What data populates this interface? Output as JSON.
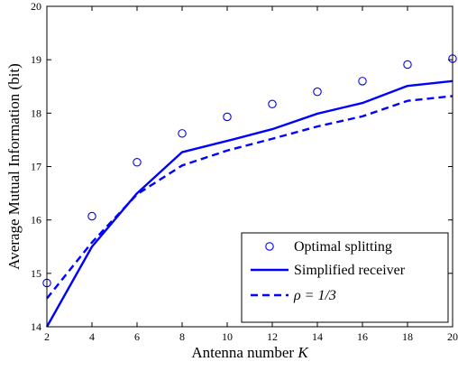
{
  "chart_data": {
    "type": "line",
    "xlabel": "Antenna number",
    "xlabel_var": "K",
    "ylabel": "Average Mutual Information (bit)",
    "xlim": [
      2,
      20
    ],
    "ylim": [
      14,
      20
    ],
    "x_ticks": [
      "2",
      "4",
      "6",
      "8",
      "10",
      "12",
      "14",
      "16",
      "18",
      "20"
    ],
    "y_ticks": [
      "14",
      "15",
      "16",
      "17",
      "18",
      "19",
      "20"
    ],
    "grid": false,
    "legend_position": "bottom-right",
    "x": [
      2,
      4,
      6,
      8,
      10,
      12,
      14,
      16,
      18,
      20
    ],
    "series": [
      {
        "name": "Optimal splitting",
        "style": "circle-markers",
        "color": "#0000ff",
        "values": [
          14.82,
          16.07,
          17.08,
          17.62,
          17.93,
          18.17,
          18.4,
          18.6,
          18.91,
          19.02
        ]
      },
      {
        "name": "Simplified receiver",
        "style": "solid",
        "color": "#0000ff",
        "values": [
          14.0,
          15.5,
          16.5,
          17.27,
          17.48,
          17.7,
          17.99,
          18.19,
          18.51,
          18.6
        ]
      },
      {
        "name": "ρ = 1/3",
        "style": "dashed",
        "color": "#0000ff",
        "values": [
          14.53,
          15.58,
          16.48,
          17.02,
          17.3,
          17.52,
          17.75,
          17.94,
          18.23,
          18.32
        ]
      }
    ]
  }
}
